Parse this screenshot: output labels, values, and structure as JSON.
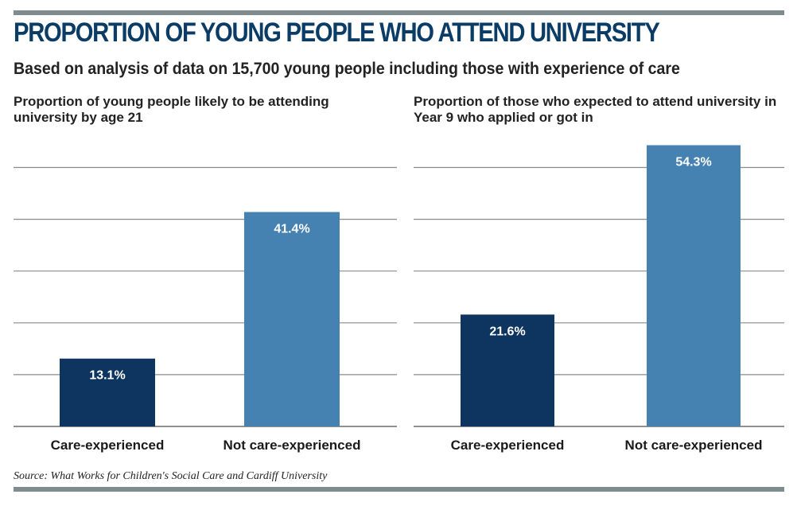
{
  "header": {
    "title": "PROPORTION OF YOUNG PEOPLE WHO ATTEND UNIVERSITY",
    "subtitle": "Based on analysis of data on 15,700 young people including those with experience of care"
  },
  "source": "Source: What Works for Children's Social Care and Cardiff University",
  "colors": {
    "care_experienced": "#0d3560",
    "not_care_experienced": "#4581b1",
    "title": "#0b3c66",
    "rule": "#7f8c8f"
  },
  "chart_data": [
    {
      "type": "bar",
      "title": "Proportion of young people likely to be attending university by age 21",
      "categories": [
        "Care-experienced",
        "Not care-experienced"
      ],
      "values": [
        13.1,
        41.4
      ],
      "data_labels": [
        "13.1%",
        "41.4%"
      ],
      "ylim": [
        0,
        50
      ],
      "grid": true,
      "xlabel": "",
      "ylabel": ""
    },
    {
      "type": "bar",
      "title": "Proportion of those who expected to attend university in Year 9 who applied or got in",
      "categories": [
        "Care-experienced",
        "Not care-experienced"
      ],
      "values": [
        21.6,
        54.3
      ],
      "data_labels": [
        "21.6%",
        "54.3%"
      ],
      "ylim": [
        0,
        50
      ],
      "grid": true,
      "xlabel": "",
      "ylabel": ""
    }
  ]
}
